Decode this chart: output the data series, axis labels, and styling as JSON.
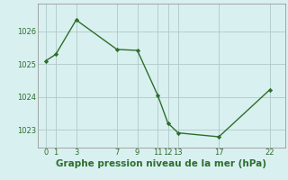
{
  "x": [
    0,
    1,
    3,
    7,
    9,
    11,
    12,
    13,
    17,
    22
  ],
  "y": [
    1025.1,
    1025.3,
    1026.35,
    1025.45,
    1025.42,
    1024.05,
    1023.2,
    1022.9,
    1022.78,
    1024.22
  ],
  "xticks": [
    0,
    1,
    3,
    7,
    9,
    11,
    12,
    13,
    17,
    22
  ],
  "yticks": [
    1023,
    1024,
    1025,
    1026
  ],
  "ylim": [
    1022.45,
    1026.85
  ],
  "xlim": [
    -0.8,
    23.5
  ],
  "line_color": "#2d6e2d",
  "marker": "D",
  "marker_size": 2.2,
  "line_width": 1.0,
  "bg_color": "#d9f0f0",
  "grid_color": "#b0c8c8",
  "xlabel": "Graphe pression niveau de la mer (hPa)",
  "xlabel_color": "#2d6e2d",
  "xlabel_fontsize": 7.5,
  "tick_fontsize": 6.0
}
